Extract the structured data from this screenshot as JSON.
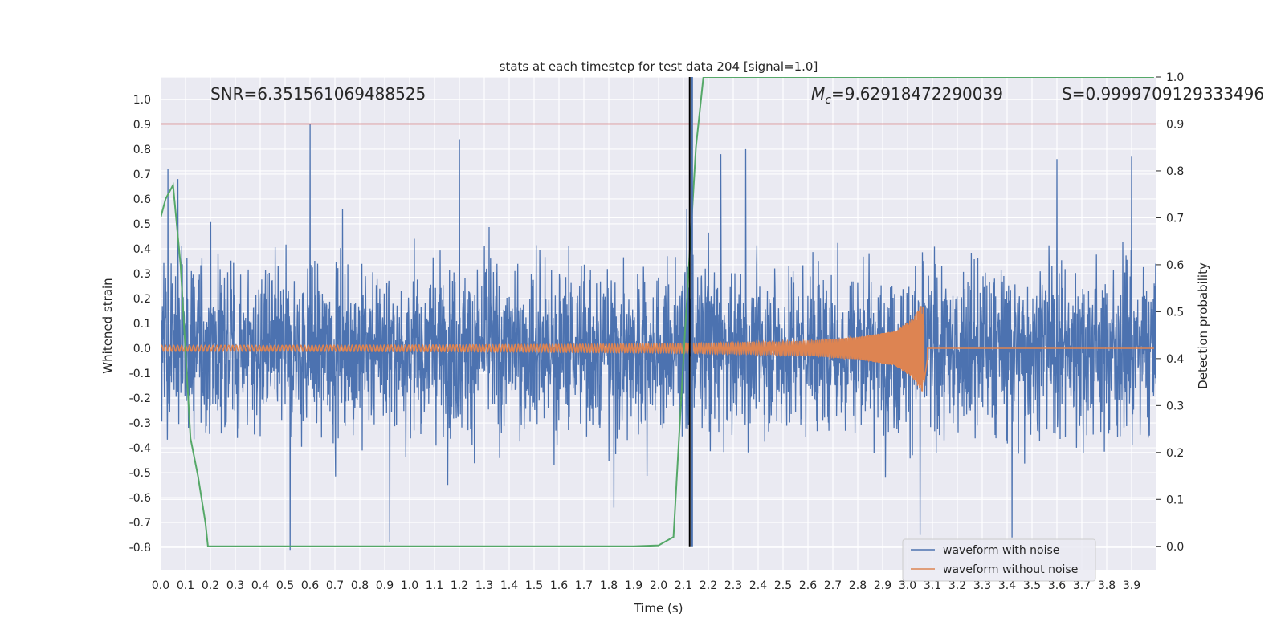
{
  "chart_data": {
    "type": "line",
    "title": "stats at each timestep for test data 204 [signal=1.0]",
    "xlabel": "Time (s)",
    "ylabel": "Whitened strain",
    "y2label": "Detection probability",
    "xlim": [
      0.0,
      4.0
    ],
    "ylim": [
      -0.89,
      1.09
    ],
    "y2lim": [
      -0.05,
      1.0
    ],
    "x_ticks": [
      "0.0",
      "0.1",
      "0.2",
      "0.3",
      "0.4",
      "0.5",
      "0.6",
      "0.7",
      "0.8",
      "0.9",
      "1.0",
      "1.1",
      "1.2",
      "1.3",
      "1.4",
      "1.5",
      "1.6",
      "1.7",
      "1.8",
      "1.9",
      "2.0",
      "2.1",
      "2.2",
      "2.3",
      "2.4",
      "2.5",
      "2.6",
      "2.7",
      "2.8",
      "2.9",
      "3.0",
      "3.1",
      "3.2",
      "3.3",
      "3.4",
      "3.5",
      "3.6",
      "3.7",
      "3.8",
      "3.9"
    ],
    "y_ticks": [
      "1.0",
      "0.9",
      "0.8",
      "0.7",
      "0.6",
      "0.5",
      "0.4",
      "0.3",
      "0.2",
      "0.1",
      "0.0",
      "-0.1",
      "-0.2",
      "-0.3",
      "-0.4",
      "-0.5",
      "-0.6",
      "-0.7",
      "-0.8"
    ],
    "y2_ticks": [
      "1.0",
      "0.9",
      "0.8",
      "0.7",
      "0.6",
      "0.5",
      "0.4",
      "0.3",
      "0.2",
      "0.1",
      "0.0"
    ],
    "grid": true,
    "legend_position": "lower-right",
    "series": [
      {
        "name": "waveform with noise",
        "color": "#4c72b0",
        "description_peaks": [
          [
            0.03,
            0.72
          ],
          [
            0.07,
            0.68
          ],
          [
            0.6,
            0.9
          ],
          [
            1.2,
            0.84
          ],
          [
            2.25,
            0.78
          ],
          [
            2.35,
            0.8
          ],
          [
            3.6,
            0.76
          ],
          [
            3.9,
            0.77
          ]
        ],
        "description_troughs": [
          [
            0.52,
            -0.81
          ],
          [
            0.92,
            -0.78
          ],
          [
            1.82,
            -0.64
          ],
          [
            3.42,
            -0.76
          ],
          [
            3.05,
            -0.75
          ]
        ]
      },
      {
        "name": "waveform without noise",
        "color": "#dd8452",
        "x": [
          0.0,
          0.5,
          1.0,
          1.5,
          2.0,
          2.3,
          2.6,
          2.8,
          2.95,
          3.02,
          3.06,
          3.08,
          3.1,
          3.99
        ],
        "amplitude": [
          0.012,
          0.012,
          0.013,
          0.015,
          0.018,
          0.022,
          0.03,
          0.045,
          0.07,
          0.12,
          0.18,
          0.04,
          0.0,
          0.0
        ]
      },
      {
        "name": "detection probability",
        "axis": "right",
        "color": "#55a868",
        "x": [
          0.0,
          0.02,
          0.05,
          0.08,
          0.12,
          0.15,
          0.18,
          0.19,
          0.5,
          1.0,
          1.5,
          1.9,
          2.0,
          2.06,
          2.1,
          2.15,
          2.18,
          3.99
        ],
        "y": [
          0.7,
          0.74,
          0.77,
          0.6,
          0.23,
          0.15,
          0.05,
          0.0,
          0.0,
          0.0,
          0.0,
          0.0,
          0.002,
          0.02,
          0.4,
          0.85,
          1.0,
          1.0
        ]
      }
    ],
    "threshold_line": {
      "axis": "right",
      "value": 0.9,
      "color": "#c44e52"
    },
    "vertical_lines": [
      {
        "x": 2.125,
        "color": "#000000"
      },
      {
        "x": 2.135,
        "color": "#4c72b0"
      }
    ],
    "annotations": {
      "snr": "SNR=6.351561069488525",
      "mc_symbol": "M",
      "mc_subscript": "c",
      "mc_value": "=9.62918472290039",
      "s": "S=0.9999709129333496"
    }
  }
}
